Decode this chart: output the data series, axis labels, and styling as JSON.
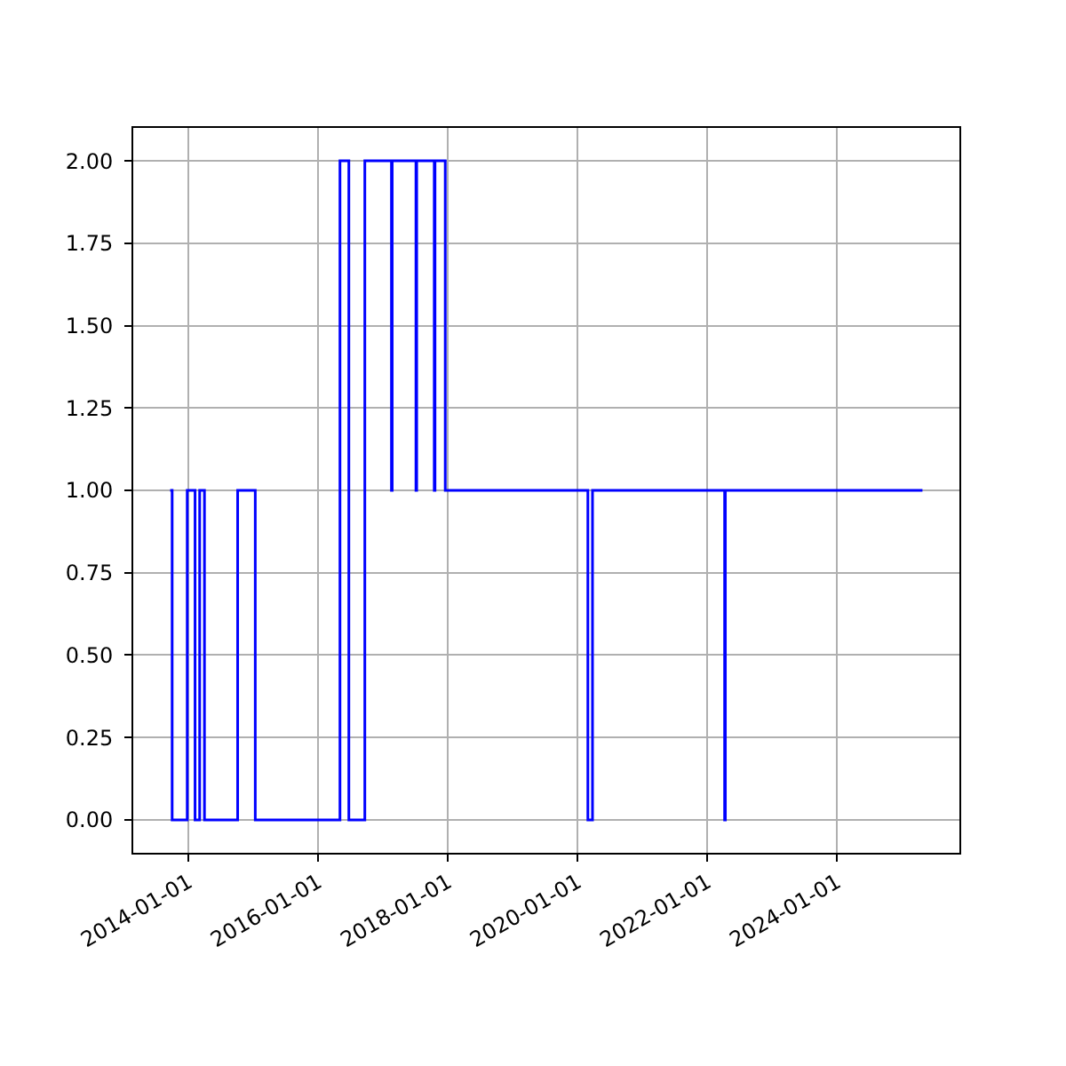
{
  "chart_data": {
    "type": "step",
    "x": [
      "2013-09-20",
      "2013-10-01",
      "2013-12-25",
      "2014-02-07",
      "2014-03-05",
      "2014-04-01",
      "2014-10-05",
      "2015-01-12",
      "2016-05-03",
      "2016-06-22",
      "2016-09-20",
      "2017-02-17",
      "2017-02-21",
      "2017-07-05",
      "2017-07-09",
      "2017-10-16",
      "2017-10-20",
      "2017-12-17",
      "2020-02-28",
      "2020-03-25",
      "2022-04-08",
      "2022-04-12",
      "2025-04-26"
    ],
    "series": [
      {
        "color": "#0000ff",
        "values": [
          1,
          0,
          1,
          0,
          1,
          0,
          1,
          0,
          2,
          0,
          2,
          1,
          2,
          1,
          2,
          1,
          2,
          1,
          0,
          1,
          0,
          1,
          1
        ]
      }
    ],
    "xlim": [
      "2013-02-24",
      "2025-11-20"
    ],
    "xticks": [
      "2014-01-01",
      "2016-01-01",
      "2018-01-01",
      "2020-01-01",
      "2022-01-01",
      "2024-01-01"
    ],
    "ylim": [
      -0.1,
      2.1
    ],
    "yticks": [
      {
        "value": 0,
        "label": "0.00"
      },
      {
        "value": 0.25,
        "label": "0.25"
      },
      {
        "value": 0.5,
        "label": "0.50"
      },
      {
        "value": 0.75,
        "label": "0.75"
      },
      {
        "value": 1,
        "label": "1.00"
      },
      {
        "value": 1.25,
        "label": "1.25"
      },
      {
        "value": 1.5,
        "label": "1.50"
      },
      {
        "value": 1.75,
        "label": "1.75"
      },
      {
        "value": 2,
        "label": "2.00"
      }
    ],
    "grid": true
  }
}
